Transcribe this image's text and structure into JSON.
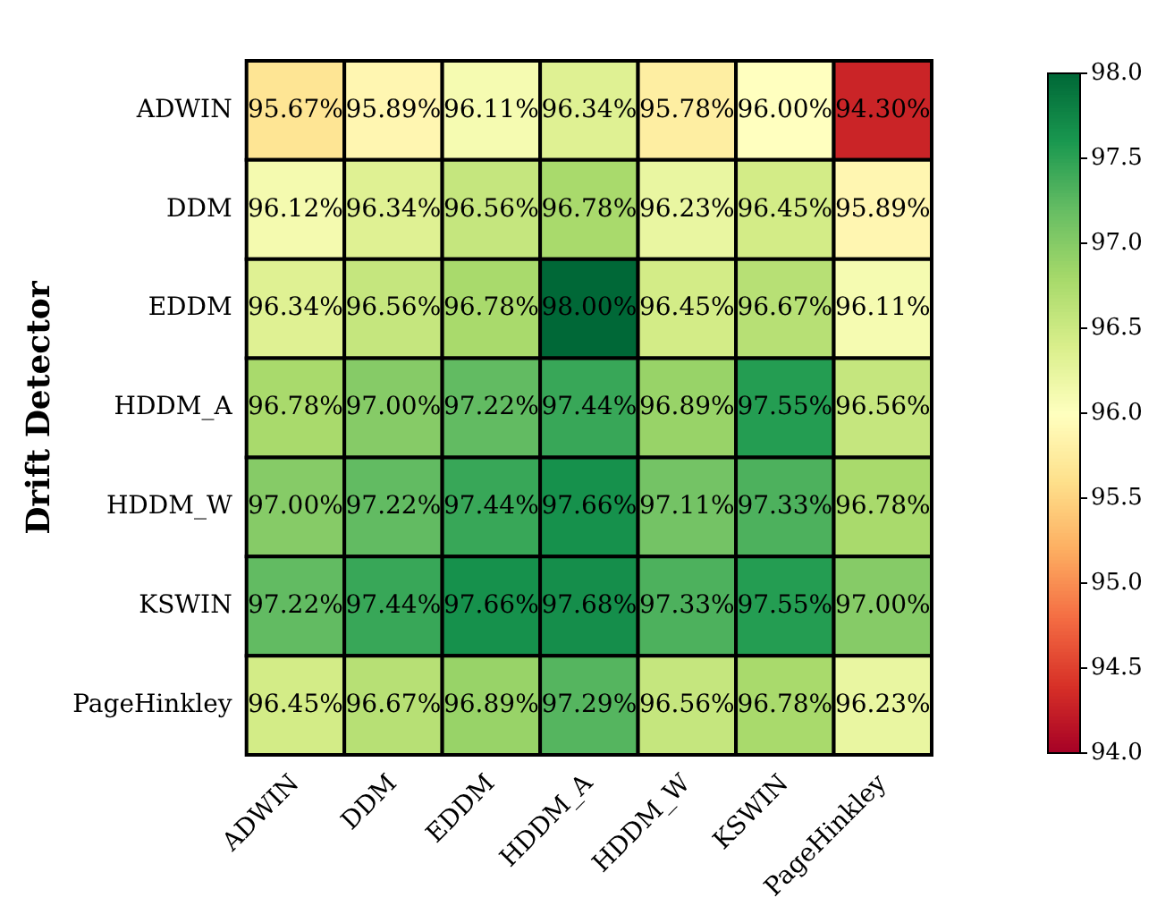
{
  "chart_data": {
    "type": "heatmap",
    "ylabel": "Drift Detector",
    "categories": [
      "ADWIN",
      "DDM",
      "EDDM",
      "HDDM_A",
      "HDDM_W",
      "KSWIN",
      "PageHinkley"
    ],
    "y_categories": [
      "ADWIN",
      "DDM",
      "EDDM",
      "HDDM_A",
      "HDDM_W",
      "KSWIN",
      "PageHinkley"
    ],
    "cells": [
      [
        95.67,
        95.89,
        96.11,
        96.34,
        95.78,
        96.0,
        94.3
      ],
      [
        96.12,
        96.34,
        96.56,
        96.78,
        96.23,
        96.45,
        95.89
      ],
      [
        96.34,
        96.56,
        96.78,
        98.0,
        96.45,
        96.67,
        96.11
      ],
      [
        96.78,
        97.0,
        97.22,
        97.44,
        96.89,
        97.55,
        96.56
      ],
      [
        97.0,
        97.22,
        97.44,
        97.66,
        97.11,
        97.33,
        96.78
      ],
      [
        97.22,
        97.44,
        97.66,
        97.68,
        97.33,
        97.55,
        97.0
      ],
      [
        96.45,
        96.67,
        96.89,
        97.29,
        96.56,
        96.78,
        96.23
      ]
    ],
    "cell_labels": [
      [
        "95.67%",
        "95.89%",
        "96.11%",
        "96.34%",
        "95.78%",
        "96.00%",
        "94.30%"
      ],
      [
        "96.12%",
        "96.34%",
        "96.56%",
        "96.78%",
        "96.23%",
        "96.45%",
        "95.89%"
      ],
      [
        "96.34%",
        "96.56%",
        "96.78%",
        "98.00%",
        "96.45%",
        "96.67%",
        "96.11%"
      ],
      [
        "96.78%",
        "97.00%",
        "97.22%",
        "97.44%",
        "96.89%",
        "97.55%",
        "96.56%"
      ],
      [
        "97.00%",
        "97.22%",
        "97.44%",
        "97.66%",
        "97.11%",
        "97.33%",
        "96.78%"
      ],
      [
        "97.22%",
        "97.44%",
        "97.66%",
        "97.68%",
        "97.33%",
        "97.55%",
        "97.00%"
      ],
      [
        "96.45%",
        "96.67%",
        "96.89%",
        "97.29%",
        "96.56%",
        "96.78%",
        "96.23%"
      ]
    ],
    "clim": [
      94,
      98
    ],
    "cticks": [
      {
        "value": 94,
        "label": "94.0"
      },
      {
        "value": 94.5,
        "label": "94.5"
      },
      {
        "value": 95,
        "label": "95.0"
      },
      {
        "value": 95.5,
        "label": "95.5"
      },
      {
        "value": 96,
        "label": "96.0"
      },
      {
        "value": 96.5,
        "label": "96.5"
      },
      {
        "value": 97,
        "label": "97.0"
      },
      {
        "value": 97.5,
        "label": "97.5"
      },
      {
        "value": 98,
        "label": "98.0"
      }
    ]
  }
}
